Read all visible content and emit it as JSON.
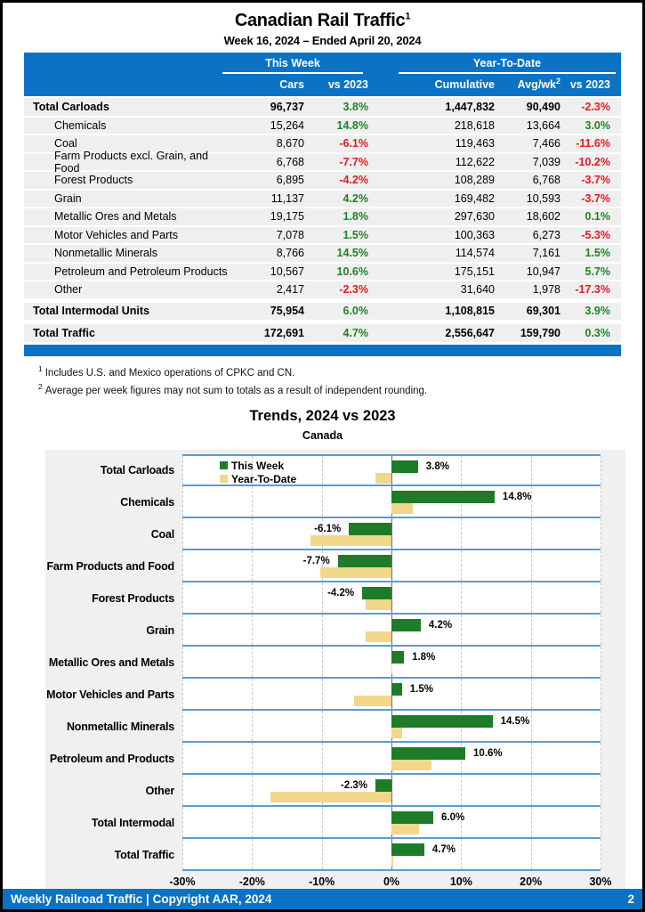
{
  "page": {
    "title": "Canadian Rail Traffic",
    "title_sup": "1",
    "subtitle": "Week 16, 2024 – Ended April 20, 2024",
    "footer_left": "Weekly Railroad Traffic | Copyright AAR, 2024",
    "footer_page": "2"
  },
  "table": {
    "group_headers": {
      "this_week": "This Week",
      "ytd": "Year-To-Date"
    },
    "col_headers": {
      "cars": "Cars",
      "wk_vs": "vs 2023",
      "cumulative": "Cumulative",
      "avg_wk": "Avg/wk",
      "avg_wk_sup": "2",
      "ytd_vs": "vs 2023"
    },
    "rows": [
      {
        "label": "Total Carloads",
        "bold": true,
        "cars": "96,737",
        "wk_pct": "3.8%",
        "cumulative": "1,447,832",
        "avg_wk": "90,490",
        "ytd_pct": "-2.3%"
      },
      {
        "label": "Chemicals",
        "bold": false,
        "cars": "15,264",
        "wk_pct": "14.8%",
        "cumulative": "218,618",
        "avg_wk": "13,664",
        "ytd_pct": "3.0%"
      },
      {
        "label": "Coal",
        "bold": false,
        "cars": "8,670",
        "wk_pct": "-6.1%",
        "cumulative": "119,463",
        "avg_wk": "7,466",
        "ytd_pct": "-11.6%"
      },
      {
        "label": "Farm Products excl. Grain, and Food",
        "bold": false,
        "cars": "6,768",
        "wk_pct": "-7.7%",
        "cumulative": "112,622",
        "avg_wk": "7,039",
        "ytd_pct": "-10.2%"
      },
      {
        "label": "Forest Products",
        "bold": false,
        "cars": "6,895",
        "wk_pct": "-4.2%",
        "cumulative": "108,289",
        "avg_wk": "6,768",
        "ytd_pct": "-3.7%"
      },
      {
        "label": "Grain",
        "bold": false,
        "cars": "11,137",
        "wk_pct": "4.2%",
        "cumulative": "169,482",
        "avg_wk": "10,593",
        "ytd_pct": "-3.7%"
      },
      {
        "label": "Metallic Ores and Metals",
        "bold": false,
        "cars": "19,175",
        "wk_pct": "1.8%",
        "cumulative": "297,630",
        "avg_wk": "18,602",
        "ytd_pct": "0.1%"
      },
      {
        "label": "Motor Vehicles and Parts",
        "bold": false,
        "cars": "7,078",
        "wk_pct": "1.5%",
        "cumulative": "100,363",
        "avg_wk": "6,273",
        "ytd_pct": "-5.3%"
      },
      {
        "label": "Nonmetallic Minerals",
        "bold": false,
        "cars": "8,766",
        "wk_pct": "14.5%",
        "cumulative": "114,574",
        "avg_wk": "7,161",
        "ytd_pct": "1.5%"
      },
      {
        "label": "Petroleum and Petroleum Products",
        "bold": false,
        "cars": "10,567",
        "wk_pct": "10.6%",
        "cumulative": "175,151",
        "avg_wk": "10,947",
        "ytd_pct": "5.7%"
      },
      {
        "label": "Other",
        "bold": false,
        "cars": "2,417",
        "wk_pct": "-2.3%",
        "cumulative": "31,640",
        "avg_wk": "1,978",
        "ytd_pct": "-17.3%"
      },
      {
        "label": "Total Intermodal Units",
        "bold": true,
        "cars": "75,954",
        "wk_pct": "6.0%",
        "cumulative": "1,108,815",
        "avg_wk": "69,301",
        "ytd_pct": "3.9%"
      },
      {
        "label": "Total Traffic",
        "bold": true,
        "cars": "172,691",
        "wk_pct": "4.7%",
        "cumulative": "2,556,647",
        "avg_wk": "159,790",
        "ytd_pct": "0.3%"
      }
    ]
  },
  "footnotes": [
    {
      "sup": "1",
      "text": "Includes U.S. and Mexico operations of CPKC and CN."
    },
    {
      "sup": "2",
      "text": "Average per week figures may not sum to totals as a result of independent rounding."
    }
  ],
  "chart_data": {
    "type": "bar",
    "orientation": "horizontal",
    "title": "Trends, 2024 vs 2023",
    "subtitle": "Canada",
    "categories": [
      "Total Carloads",
      "Chemicals",
      "Coal",
      "Farm Products and Food",
      "Forest Products",
      "Grain",
      "Metallic Ores and Metals",
      "Motor Vehicles and Parts",
      "Nonmetallic Minerals",
      "Petroleum and Products",
      "Other",
      "Total Intermodal",
      "Total Traffic"
    ],
    "series": [
      {
        "name": "This Week",
        "values": [
          3.8,
          14.8,
          -6.1,
          -7.7,
          -4.2,
          4.2,
          1.8,
          1.5,
          14.5,
          10.6,
          -2.3,
          6.0,
          4.7
        ]
      },
      {
        "name": "Year-To-Date",
        "values": [
          -2.3,
          3.0,
          -11.6,
          -10.2,
          -3.7,
          -3.7,
          0.1,
          -5.3,
          1.5,
          5.7,
          -17.3,
          3.9,
          0.3
        ]
      }
    ],
    "bar_labels": [
      "3.8%",
      "14.8%",
      "-6.1%",
      "-7.7%",
      "-4.2%",
      "4.2%",
      "1.8%",
      "1.5%",
      "14.5%",
      "10.6%",
      "-2.3%",
      "6.0%",
      "4.7%"
    ],
    "xlim": [
      -30,
      30
    ],
    "x_ticks": [
      {
        "value": -30,
        "label": "-30%"
      },
      {
        "value": -20,
        "label": "-20%"
      },
      {
        "value": -10,
        "label": "-10%"
      },
      {
        "value": 0,
        "label": "0%"
      },
      {
        "value": 10,
        "label": "10%"
      },
      {
        "value": 20,
        "label": "20%"
      },
      {
        "value": 30,
        "label": "30%"
      }
    ],
    "gridline_values": [
      -30,
      -20,
      -10,
      10,
      20,
      30
    ],
    "legend_position": "top-left"
  },
  "colors": {
    "header_blue": "#0B72C4",
    "row_gray": "#EFEFEF",
    "positive_green": "#1E8424",
    "negative_red": "#E8191F",
    "bar_green": "#1E7B28",
    "bar_tan": "#F0D78A",
    "separator_blue": "#5B9BD5",
    "grid_gray": "#C8C8C8",
    "zero_line_gray": "#6E6E6E",
    "chart_bg": "#F0F0F0"
  }
}
